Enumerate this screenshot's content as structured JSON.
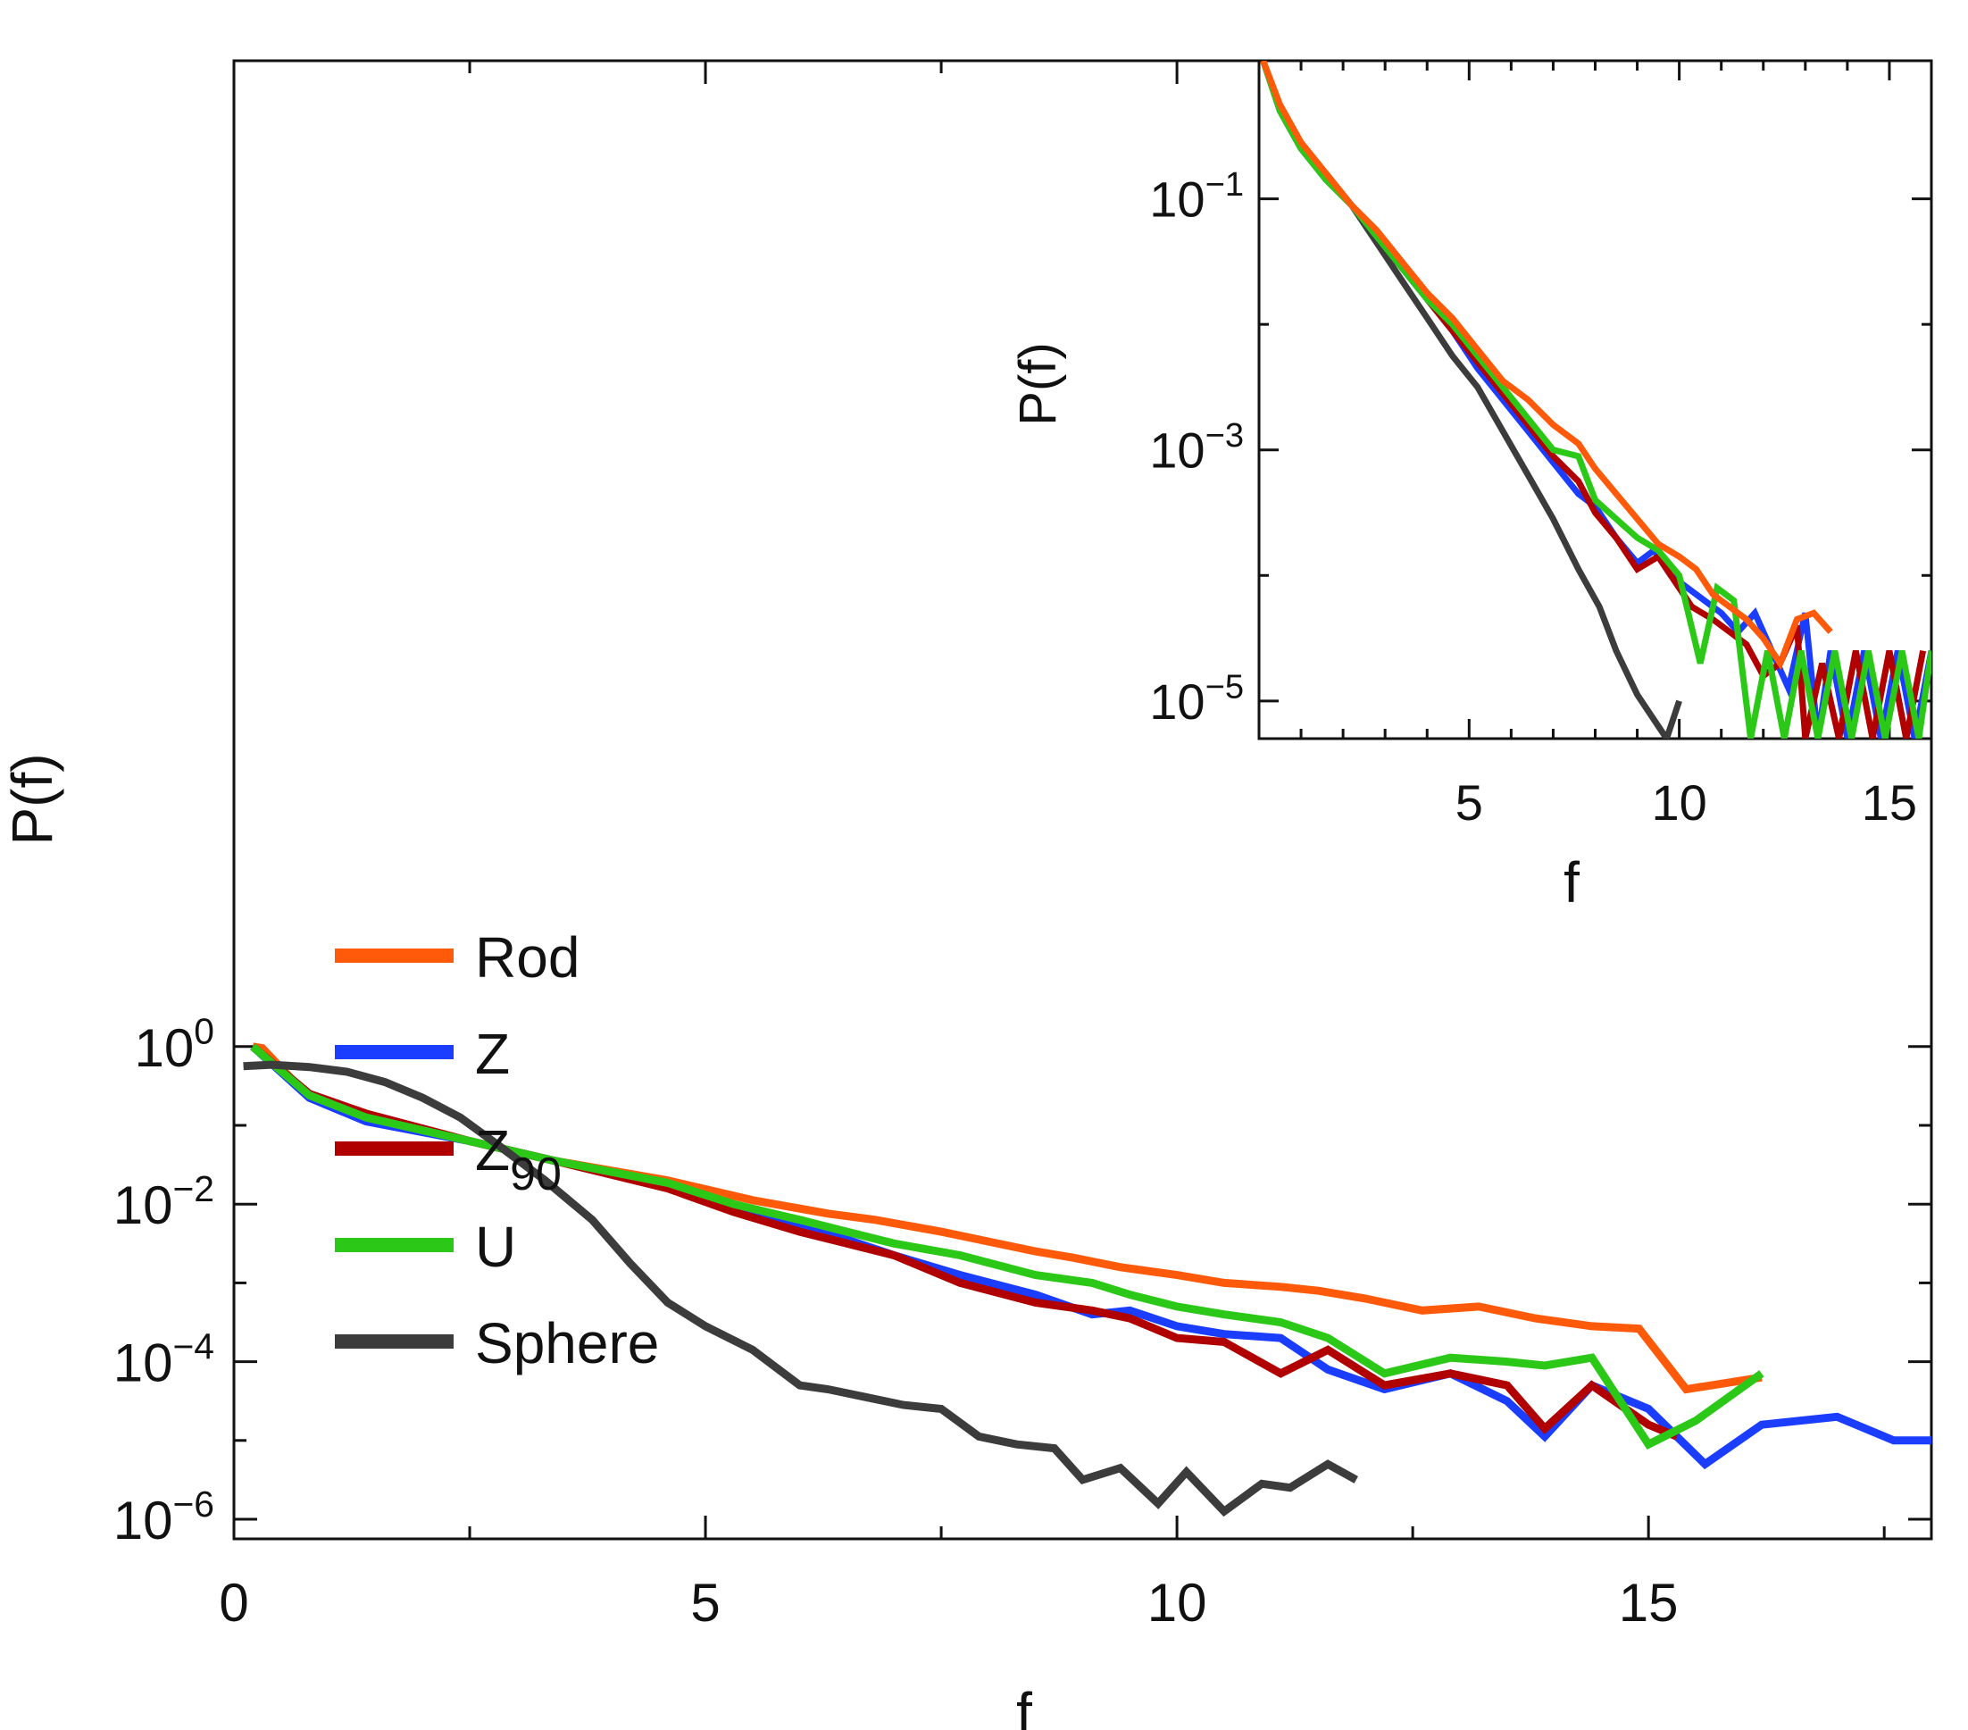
{
  "chart_data": {
    "main": {
      "type": "line",
      "title": "",
      "xlabel": "f",
      "ylabel": "P(f)",
      "xlim": [
        0,
        18
      ],
      "ylim_log10": [
        -6.1,
        0.15
      ],
      "yscale": "log",
      "x_ticks": [
        0,
        5,
        10,
        15
      ],
      "y_ticks": [
        {
          "exp": 0,
          "base": "10",
          "sup": "0"
        },
        {
          "exp": -2,
          "base": "10",
          "sup": "−2"
        },
        {
          "exp": -4,
          "base": "10",
          "sup": "−4"
        },
        {
          "exp": -6,
          "base": "10",
          "sup": "−6"
        }
      ],
      "legend": {
        "placement": "left-middle"
      },
      "series": [
        {
          "name": "Rod",
          "name_main": "Rod",
          "color": "#ff5a0a",
          "x": [
            0.2,
            0.3,
            0.8,
            1.4,
            2.5,
            3.4,
            4.6,
            5.5,
            6.3,
            6.8,
            7.5,
            7.9,
            8.5,
            8.9,
            9.4,
            10.0,
            10.5,
            11.1,
            11.5,
            12.0,
            12.6,
            13.2,
            13.8,
            14.4,
            14.9,
            15.4,
            16.2
          ],
          "log10": [
            0.0,
            -0.02,
            -0.65,
            -0.9,
            -1.2,
            -1.45,
            -1.7,
            -1.95,
            -2.12,
            -2.2,
            -2.35,
            -2.45,
            -2.6,
            -2.68,
            -2.8,
            -2.9,
            -3.0,
            -3.05,
            -3.1,
            -3.2,
            -3.35,
            -3.3,
            -3.45,
            -3.55,
            -3.58,
            -4.35,
            -4.2
          ]
        },
        {
          "name": "Z",
          "name_main": "Z",
          "color": "#1a3dff",
          "x": [
            0.2,
            0.8,
            1.4,
            2.5,
            3.4,
            4.6,
            5.3,
            6.0,
            6.5,
            7.0,
            7.7,
            8.5,
            9.1,
            9.5,
            10.0,
            10.5,
            11.1,
            11.6,
            12.2,
            12.9,
            13.5,
            13.9,
            14.4,
            15.0,
            15.6,
            16.2,
            17.0,
            17.6,
            18.0
          ],
          "log10": [
            0.0,
            -0.65,
            -0.95,
            -1.2,
            -1.45,
            -1.75,
            -2.05,
            -2.3,
            -2.45,
            -2.65,
            -2.9,
            -3.15,
            -3.4,
            -3.35,
            -3.55,
            -3.65,
            -3.7,
            -4.1,
            -4.35,
            -4.15,
            -4.5,
            -4.95,
            -4.3,
            -4.6,
            -5.3,
            -4.8,
            -4.7,
            -5.0,
            -5.0
          ]
        },
        {
          "name": "Z90",
          "name_main": "Z",
          "name_sub": "90",
          "color": "#b00000",
          "x": [
            0.2,
            0.8,
            1.4,
            2.5,
            3.4,
            4.6,
            5.3,
            6.0,
            6.5,
            7.0,
            7.7,
            8.5,
            9.1,
            9.5,
            10.0,
            10.5,
            11.1,
            11.6,
            12.2,
            12.9,
            13.5,
            13.9,
            14.4,
            15.0,
            15.3
          ],
          "log10": [
            0.0,
            -0.6,
            -0.85,
            -1.2,
            -1.45,
            -1.8,
            -2.1,
            -2.35,
            -2.5,
            -2.65,
            -3.0,
            -3.25,
            -3.35,
            -3.45,
            -3.7,
            -3.75,
            -4.15,
            -3.85,
            -4.3,
            -4.15,
            -4.3,
            -4.85,
            -4.3,
            -4.8,
            -4.95
          ]
        },
        {
          "name": "U",
          "name_main": "U",
          "color": "#2cc818",
          "x": [
            0.2,
            0.8,
            1.4,
            2.5,
            3.4,
            4.6,
            5.3,
            6.0,
            6.5,
            7.0,
            7.7,
            8.5,
            9.1,
            9.5,
            10.0,
            10.5,
            11.1,
            11.6,
            12.2,
            12.9,
            13.5,
            13.9,
            14.4,
            15.0,
            15.5,
            16.2
          ],
          "log10": [
            0.0,
            -0.62,
            -0.9,
            -1.2,
            -1.45,
            -1.73,
            -2.0,
            -2.2,
            -2.35,
            -2.5,
            -2.65,
            -2.9,
            -3.0,
            -3.15,
            -3.3,
            -3.4,
            -3.5,
            -3.7,
            -4.15,
            -3.95,
            -4.0,
            -4.05,
            -3.95,
            -5.05,
            -4.75,
            -4.15
          ]
        },
        {
          "name": "Sphere",
          "name_main": "Sphere",
          "color": "#3c3c3c",
          "x": [
            0.1,
            0.4,
            0.8,
            1.2,
            1.6,
            2.0,
            2.4,
            2.8,
            3.3,
            3.8,
            4.2,
            4.6,
            5.0,
            5.5,
            6.0,
            6.3,
            6.7,
            7.1,
            7.5,
            7.9,
            8.3,
            8.7,
            9.0,
            9.4,
            9.8,
            10.1,
            10.5,
            10.9,
            11.2,
            11.6,
            11.9
          ],
          "log10": [
            -0.25,
            -0.23,
            -0.26,
            -0.32,
            -0.45,
            -0.65,
            -0.9,
            -1.25,
            -1.7,
            -2.2,
            -2.75,
            -3.25,
            -3.55,
            -3.85,
            -4.3,
            -4.35,
            -4.45,
            -4.55,
            -4.6,
            -4.95,
            -5.05,
            -5.1,
            -5.5,
            -5.35,
            -5.8,
            -5.4,
            -5.9,
            -5.55,
            -5.6,
            -5.3,
            -5.5
          ]
        }
      ]
    },
    "inset": {
      "type": "line",
      "xlabel": "f",
      "ylabel": "P(f)",
      "xlim": [
        0,
        16
      ],
      "ylim_log10": [
        -5.3,
        0.1
      ],
      "yscale": "log",
      "x_ticks": [
        5,
        10,
        15
      ],
      "y_ticks": [
        {
          "exp": -1,
          "base": "10",
          "sup": "−1"
        },
        {
          "exp": -3,
          "base": "10",
          "sup": "−3"
        },
        {
          "exp": -5,
          "base": "10",
          "sup": "−5"
        }
      ],
      "series": [
        {
          "name": "Sphere",
          "color": "#3c3c3c",
          "x": [
            0.1,
            0.5,
            1.0,
            1.6,
            2.2,
            2.8,
            3.4,
            4.0,
            4.6,
            5.2,
            5.8,
            6.4,
            7.0,
            7.6,
            8.1,
            8.5,
            9.0,
            9.4,
            9.7,
            10.0
          ],
          "log10": [
            0.1,
            -0.3,
            -0.6,
            -0.8,
            -1.05,
            -1.35,
            -1.65,
            -1.95,
            -2.25,
            -2.5,
            -2.85,
            -3.2,
            -3.55,
            -3.95,
            -4.25,
            -4.6,
            -4.95,
            -5.15,
            -5.3,
            -5.0
          ]
        },
        {
          "name": "Z",
          "color": "#1a3dff",
          "x": [
            0.1,
            0.5,
            1.0,
            1.6,
            2.2,
            2.8,
            3.4,
            4.0,
            4.6,
            5.2,
            5.8,
            6.4,
            7.0,
            7.6,
            8.0,
            8.5,
            9.0,
            9.4,
            9.8,
            10.2,
            10.6,
            11.0,
            11.4,
            11.8,
            12.2,
            12.6,
            13.0,
            13.3,
            13.6,
            14.0,
            14.4,
            14.8,
            15.2,
            15.6,
            16.0
          ],
          "log10": [
            0.1,
            -0.3,
            -0.6,
            -0.85,
            -1.05,
            -1.3,
            -1.55,
            -1.8,
            -2.05,
            -2.35,
            -2.6,
            -2.85,
            -3.1,
            -3.35,
            -3.45,
            -3.7,
            -3.9,
            -3.8,
            -4.0,
            -4.1,
            -4.2,
            -4.3,
            -4.45,
            -4.3,
            -4.6,
            -4.9,
            -4.3,
            -5.3,
            -4.6,
            -5.3,
            -4.6,
            -5.3,
            -4.6,
            -5.3,
            -4.6
          ]
        },
        {
          "name": "Z90",
          "color": "#b00000",
          "x": [
            0.1,
            0.5,
            1.0,
            1.6,
            2.2,
            2.8,
            3.4,
            4.0,
            4.6,
            5.2,
            5.8,
            6.4,
            7.0,
            7.6,
            8.0,
            8.5,
            9.0,
            9.5,
            9.9,
            10.3,
            10.8,
            11.2,
            11.6,
            12.0,
            12.4,
            12.8,
            13.0,
            13.4,
            13.8,
            14.2,
            14.6,
            15.0,
            15.4,
            15.8
          ],
          "log10": [
            0.1,
            -0.3,
            -0.6,
            -0.85,
            -1.05,
            -1.3,
            -1.55,
            -1.8,
            -2.05,
            -2.3,
            -2.55,
            -2.8,
            -3.05,
            -3.25,
            -3.5,
            -3.7,
            -3.95,
            -3.85,
            -4.05,
            -4.25,
            -4.35,
            -4.45,
            -4.55,
            -4.8,
            -4.7,
            -4.4,
            -5.3,
            -4.7,
            -5.3,
            -4.6,
            -5.3,
            -4.6,
            -5.3,
            -4.6
          ]
        },
        {
          "name": "U",
          "color": "#2cc818",
          "x": [
            0.1,
            0.5,
            1.0,
            1.6,
            2.2,
            2.8,
            3.4,
            4.0,
            4.6,
            5.2,
            5.8,
            6.4,
            7.0,
            7.6,
            8.0,
            8.5,
            9.0,
            9.5,
            10.0,
            10.5,
            10.9,
            11.3,
            11.7,
            12.1,
            12.5,
            12.9,
            13.3,
            13.7,
            14.1,
            14.5,
            14.9,
            15.3,
            15.7,
            16.0
          ],
          "log10": [
            0.1,
            -0.3,
            -0.6,
            -0.85,
            -1.05,
            -1.3,
            -1.55,
            -1.8,
            -2.0,
            -2.25,
            -2.5,
            -2.75,
            -3.0,
            -3.05,
            -3.4,
            -3.55,
            -3.7,
            -3.8,
            -4.0,
            -4.7,
            -4.1,
            -4.2,
            -5.3,
            -4.6,
            -5.3,
            -4.6,
            -5.3,
            -4.6,
            -5.3,
            -4.6,
            -5.3,
            -4.6,
            -5.3,
            -4.6
          ]
        },
        {
          "name": "Rod",
          "color": "#ff5a0a",
          "x": [
            0.1,
            0.5,
            1.0,
            1.6,
            2.2,
            2.8,
            3.4,
            4.0,
            4.6,
            5.2,
            5.8,
            6.4,
            7.0,
            7.6,
            8.0,
            8.5,
            9.0,
            9.5,
            10.0,
            10.4,
            10.8,
            11.2,
            11.6,
            12.0,
            12.4,
            12.8,
            13.2,
            13.6
          ],
          "log10": [
            0.1,
            -0.25,
            -0.55,
            -0.8,
            -1.05,
            -1.25,
            -1.5,
            -1.75,
            -1.95,
            -2.2,
            -2.45,
            -2.6,
            -2.8,
            -2.95,
            -3.15,
            -3.35,
            -3.55,
            -3.75,
            -3.85,
            -3.95,
            -4.15,
            -4.25,
            -4.35,
            -4.5,
            -4.7,
            -4.35,
            -4.3,
            -4.45
          ]
        }
      ]
    }
  }
}
